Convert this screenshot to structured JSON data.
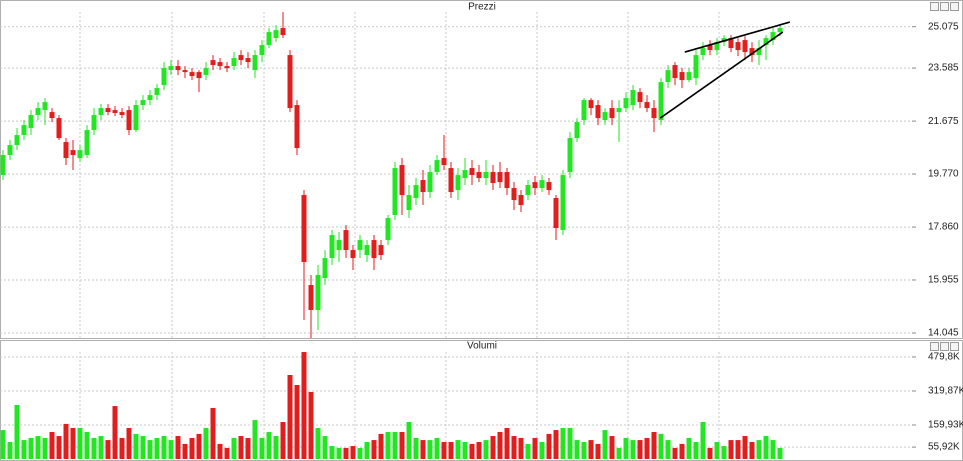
{
  "chart_data": [
    {
      "type": "candlestick",
      "title": "Prezzi",
      "up_color": "#22e622",
      "down_color": "#e21d1d",
      "grid": true,
      "ylim": [
        13830,
        25640
      ],
      "yticks": [
        {
          "value": 14045,
          "label": "14.045"
        },
        {
          "value": 15955,
          "label": "15.955"
        },
        {
          "value": 17860,
          "label": "17.860"
        },
        {
          "value": 19770,
          "label": "19.770"
        },
        {
          "value": 21675,
          "label": "21.675"
        },
        {
          "value": 23585,
          "label": "23.585"
        },
        {
          "value": 25075,
          "label": "25.075"
        }
      ],
      "open": [
        19733,
        20453,
        20813,
        21173,
        21425,
        21893,
        22073,
        22001,
        21785,
        20921,
        20633,
        20345,
        20453,
        21353,
        21893,
        22145,
        22073,
        22001,
        22073,
        21353,
        22253,
        22433,
        22613,
        22973,
        23513,
        23657,
        23513,
        23441,
        23441,
        23333,
        23873,
        23801,
        23657,
        23657,
        24053,
        23945,
        23513,
        24053,
        24413,
        24665,
        25025,
        24053,
        22253,
        19013,
        15773,
        14873,
        16025,
        16745,
        17033,
        17753,
        17033,
        17033,
        16853,
        17393,
        17213,
        17393,
        18293,
        20093,
        18473,
        18905,
        19553,
        19121,
        19841,
        20345,
        19985,
        19193,
        19625,
        19985,
        19841,
        19625,
        19841,
        19841,
        19841,
        19265,
        19013,
        19013,
        19481,
        19265,
        19481,
        18905,
        17753,
        19841,
        21065,
        21713,
        22433,
        22253,
        21713,
        22145,
        22001,
        22145,
        22253,
        22721,
        22361,
        22145,
        21713,
        23081,
        23693,
        23441,
        23153,
        23225,
        24053,
        24413,
        24233,
        24521,
        24665,
        24521,
        24593,
        24305,
        24053,
        24413,
        24593,
        24881
      ],
      "high": [
        20633,
        20993,
        21425,
        21713,
        22073,
        22361,
        22505,
        22145,
        21893,
        21065,
        20993,
        20813,
        21533,
        22145,
        22289,
        22289,
        22217,
        22145,
        22217,
        22433,
        22613,
        22793,
        23009,
        23801,
        23873,
        23873,
        23657,
        23585,
        23513,
        23801,
        24053,
        23945,
        23801,
        24161,
        24233,
        24161,
        24233,
        24593,
        25025,
        25133,
        25601,
        24233,
        22433,
        19193,
        16133,
        16493,
        17033,
        17753,
        17681,
        17933,
        17213,
        17573,
        17393,
        17573,
        17393,
        18293,
        20201,
        20345,
        19373,
        19625,
        19913,
        20093,
        20453,
        21173,
        20201,
        19985,
        20345,
        20273,
        20093,
        20273,
        20093,
        20201,
        19985,
        19481,
        19193,
        19553,
        19697,
        19733,
        19625,
        19013,
        19913,
        21281,
        21785,
        22505,
        22505,
        22433,
        22145,
        22433,
        22433,
        22721,
        22973,
        22865,
        22613,
        22433,
        23225,
        23693,
        23801,
        23585,
        23585,
        24233,
        24521,
        24593,
        24665,
        24773,
        24773,
        24665,
        24737,
        24521,
        24593,
        24773,
        25025,
        25169
      ],
      "low": [
        19553,
        20273,
        20633,
        20993,
        21173,
        21713,
        21533,
        21641,
        20993,
        20093,
        19913,
        20201,
        20345,
        21173,
        21713,
        21893,
        21857,
        21785,
        21173,
        21281,
        22073,
        22253,
        22433,
        22793,
        23333,
        23333,
        23225,
        23153,
        22721,
        23153,
        23513,
        23513,
        23441,
        23513,
        23693,
        23585,
        23225,
        23801,
        24305,
        24521,
        24665,
        22001,
        20453,
        14513,
        13865,
        14153,
        15773,
        16493,
        16601,
        16745,
        16313,
        16745,
        16601,
        16313,
        16673,
        17213,
        18113,
        18293,
        18185,
        18653,
        18653,
        18905,
        19733,
        19913,
        18905,
        18833,
        19373,
        19373,
        19481,
        19373,
        19193,
        19265,
        19013,
        18473,
        18401,
        18833,
        19013,
        19121,
        19013,
        17393,
        17573,
        19625,
        20921,
        21533,
        21893,
        21533,
        21533,
        21533,
        20921,
        22001,
        22073,
        22145,
        22001,
        21281,
        21533,
        22865,
        22973,
        22865,
        23081,
        22973,
        23873,
        24053,
        24053,
        24377,
        24161,
        24017,
        23873,
        23801,
        23693,
        23873,
        24413,
        24737
      ],
      "close": [
        20453,
        20813,
        21173,
        21533,
        21893,
        22145,
        22361,
        21785,
        21065,
        20345,
        20453,
        20633,
        21353,
        21893,
        22145,
        22001,
        21965,
        21893,
        21353,
        22253,
        22433,
        22613,
        22865,
        23585,
        23657,
        23513,
        23441,
        23297,
        23225,
        23585,
        23693,
        23657,
        23585,
        23945,
        23873,
        23801,
        24053,
        24413,
        24881,
        24953,
        24773,
        22145,
        20705,
        16601,
        14873,
        16133,
        16745,
        17573,
        17393,
        17033,
        16745,
        17393,
        17213,
        16745,
        16853,
        18185,
        19985,
        19013,
        19013,
        19373,
        19121,
        19841,
        20273,
        20093,
        19121,
        19733,
        19913,
        19733,
        19625,
        19841,
        19445,
        19481,
        19265,
        18833,
        18653,
        19373,
        19265,
        19553,
        19193,
        17825,
        19733,
        21065,
        21641,
        22433,
        22145,
        21785,
        22001,
        21785,
        22145,
        22505,
        22793,
        22361,
        22145,
        21785,
        23081,
        23513,
        23225,
        23153,
        23441,
        24053,
        24305,
        24233,
        24521,
        24665,
        24305,
        24233,
        24161,
        24053,
        24305,
        24665,
        24881,
        25025
      ],
      "trend_lines": [
        {
          "x": [
            97.4,
            112.4
          ],
          "y": [
            24161,
            25241
          ]
        },
        {
          "x": [
            93.9,
            111.4
          ],
          "y": [
            21785,
            24881
          ]
        }
      ]
    },
    {
      "type": "volume",
      "title": "Volumi",
      "grid": true,
      "ylim": [
        0,
        505000
      ],
      "yticks": [
        {
          "value": 55920,
          "label": "55,92K"
        },
        {
          "value": 159930,
          "label": "159,93K"
        },
        {
          "value": 319870,
          "label": "319,87K"
        },
        {
          "value": 479800,
          "label": "479,8K"
        }
      ],
      "values": [
        136000,
        80000,
        254000,
        89000,
        99000,
        108000,
        99000,
        127000,
        108000,
        165000,
        146000,
        146000,
        127000,
        99000,
        108000,
        89000,
        249000,
        99000,
        146000,
        118000,
        108000,
        89000,
        99000,
        108000,
        89000,
        108000,
        71000,
        99000,
        118000,
        146000,
        240000,
        71000,
        52000,
        99000,
        108000,
        99000,
        183000,
        99000,
        127000,
        108000,
        174000,
        395000,
        348000,
        503000,
        315000,
        146000,
        108000,
        61000,
        52000,
        52000,
        61000,
        52000,
        80000,
        89000,
        118000,
        127000,
        127000,
        127000,
        174000,
        99000,
        89000,
        89000,
        99000,
        80000,
        80000,
        89000,
        80000,
        71000,
        80000,
        89000,
        108000,
        127000,
        146000,
        108000,
        99000,
        71000,
        99000,
        80000,
        118000,
        136000,
        146000,
        146000,
        89000,
        80000,
        89000,
        71000,
        136000,
        108000,
        52000,
        99000,
        89000,
        89000,
        99000,
        127000,
        118000,
        89000,
        52000,
        71000,
        99000,
        80000,
        174000,
        52000,
        80000,
        61000,
        89000,
        89000,
        108000,
        80000,
        89000,
        108000,
        89000,
        52000
      ]
    }
  ]
}
